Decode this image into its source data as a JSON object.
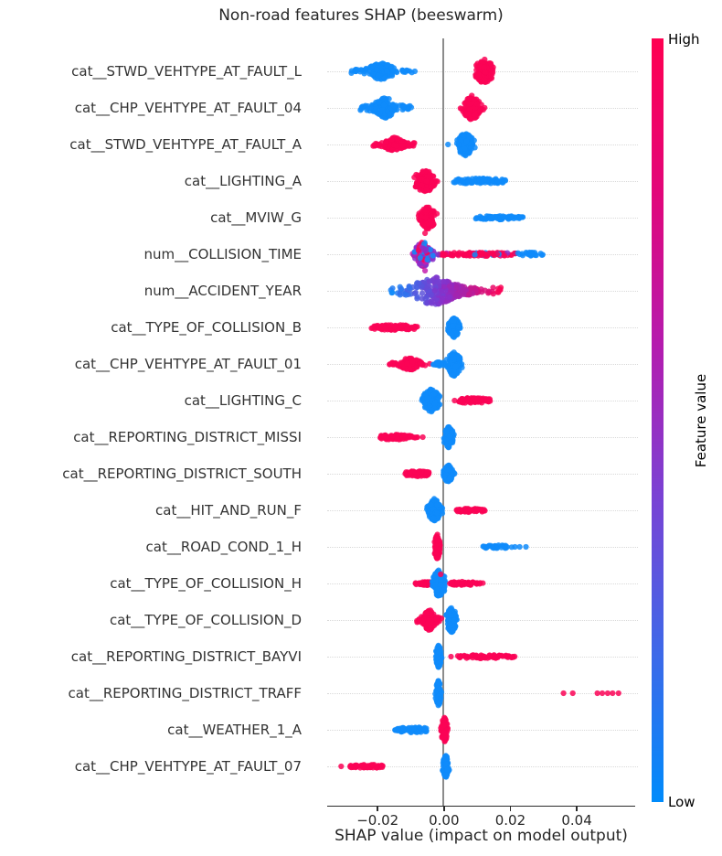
{
  "chart_data": {
    "type": "scatter",
    "subtype": "shap-beeswarm",
    "title": "Non-road features SHAP (beeswarm)",
    "xlabel": "SHAP value (impact on model output)",
    "xlim": [
      -0.0352,
      0.0576
    ],
    "xticks": [
      {
        "value": -0.02,
        "label": "−0.02"
      },
      {
        "value": 0.0,
        "label": "0.00"
      },
      {
        "value": 0.02,
        "label": "0.02"
      },
      {
        "value": 0.04,
        "label": "0.04"
      }
    ],
    "grid": "dotted-horizontal",
    "zero_line": true,
    "legend_position": "right-colorbar",
    "colorbar": {
      "label": "Feature value",
      "high_label": "High",
      "low_label": "Low",
      "high_color": "#ff0051",
      "low_color": "#008bfb",
      "gradient_stops": [
        "#ff0051",
        "#e20679",
        "#b51bae",
        "#7a42d4",
        "#3f68e8",
        "#008bfb"
      ]
    },
    "palette": {
      "red": "#fa0356",
      "blue": "#0f8bfa",
      "purple": "#8a2fc9",
      "magenta": "#c41fae"
    },
    "features": [
      {
        "name": "cat__STWD_VEHTYPE_AT_FAULT_L",
        "clusters": [
          {
            "shape": "hswarm",
            "x": [
              -0.0283,
              -0.0097
            ],
            "h": 9,
            "n": 150,
            "color": "blue"
          },
          {
            "shape": "dots",
            "xs": [
              -0.0088
            ],
            "color": "blue"
          },
          {
            "shape": "spindle",
            "x": [
              0.0082,
              0.016
            ],
            "h": 14,
            "n": 140,
            "color": "red"
          }
        ]
      },
      {
        "name": "cat__CHP_VEHTYPE_AT_FAULT_04",
        "clusters": [
          {
            "shape": "hswarm",
            "x": [
              -0.0255,
              -0.0097
            ],
            "h": 11,
            "n": 150,
            "color": "blue"
          },
          {
            "shape": "spindle",
            "x": [
              0.0046,
              0.0125
            ],
            "h": 14,
            "n": 130,
            "color": "red"
          }
        ]
      },
      {
        "name": "cat__STWD_VEHTYPE_AT_FAULT_A",
        "clusters": [
          {
            "shape": "hswarm",
            "x": [
              -0.0214,
              -0.0089
            ],
            "h": 8,
            "n": 130,
            "color": "red"
          },
          {
            "shape": "dots",
            "xs": [
              0.0012
            ],
            "color": "blue"
          },
          {
            "shape": "spindle",
            "x": [
              0.0028,
              0.01
            ],
            "h": 13,
            "n": 120,
            "color": "blue"
          }
        ]
      },
      {
        "name": "cat__LIGHTING_A",
        "clusters": [
          {
            "shape": "spindle",
            "x": [
              -0.0103,
              -0.0011
            ],
            "h": 13,
            "n": 140,
            "color": "red"
          },
          {
            "shape": "streak",
            "x": [
              0.0026,
              0.019
            ],
            "h": 3,
            "n": 95,
            "color": "blue"
          }
        ]
      },
      {
        "name": "cat__MVIW_G",
        "clusters": [
          {
            "shape": "spindle",
            "x": [
              -0.0084,
              -0.0014
            ],
            "h": 13,
            "n": 130,
            "color": "red"
          },
          {
            "shape": "streak",
            "x": [
              0.009,
              0.0238
            ],
            "h": 2,
            "n": 70,
            "color": "blue"
          }
        ]
      },
      {
        "name": "num__COLLISION_TIME",
        "clusters": [
          {
            "shape": "spindle",
            "x": [
              -0.0103,
              -0.0021
            ],
            "h": 14,
            "n": 130,
            "color": "mixed"
          },
          {
            "shape": "dots",
            "xs": [
              -0.0057
            ],
            "dy": -23,
            "color": "red"
          },
          {
            "shape": "dots",
            "xs": [
              -0.0057
            ],
            "dy": 18,
            "color": "magenta"
          },
          {
            "shape": "streak",
            "x": [
              -0.0019,
              0.0217
            ],
            "h": 2,
            "n": 115,
            "color": "red-mix"
          },
          {
            "shape": "streak",
            "x": [
              0.0217,
              0.0313
            ],
            "h": 2,
            "n": 22,
            "color": "blue"
          }
        ]
      },
      {
        "name": "num__ACCIDENT_YEAR",
        "clusters": [
          {
            "shape": "gradient",
            "x": [
              -0.0167,
              0.0172
            ],
            "h": 15,
            "n": 300,
            "color": "blue-purple-red"
          }
        ]
      },
      {
        "name": "cat__TYPE_OF_COLLISION_B",
        "clusters": [
          {
            "shape": "streak",
            "x": [
              -0.0222,
              -0.0077
            ],
            "h": 3,
            "n": 90,
            "color": "red"
          },
          {
            "shape": "spindle",
            "x": [
              0.0006,
              0.0055
            ],
            "h": 11,
            "n": 110,
            "color": "blue"
          }
        ]
      },
      {
        "name": "cat__CHP_VEHTYPE_AT_FAULT_01",
        "clusters": [
          {
            "shape": "hswarm",
            "x": [
              -0.0167,
              -0.0038
            ],
            "h": 7,
            "n": 120,
            "color": "red"
          },
          {
            "shape": "streak",
            "x": [
              -0.0034,
              0.0006
            ],
            "h": 2,
            "n": 25,
            "color": "blue"
          },
          {
            "shape": "spindle",
            "x": [
              0.0,
              0.0059
            ],
            "h": 14,
            "n": 130,
            "color": "blue"
          }
        ]
      },
      {
        "name": "cat__LIGHTING_C",
        "clusters": [
          {
            "shape": "spindle",
            "x": [
              -0.0076,
              -0.0001
            ],
            "h": 13,
            "n": 140,
            "color": "blue"
          },
          {
            "shape": "dots",
            "xs": [
              0.0032
            ],
            "color": "red"
          },
          {
            "shape": "streak",
            "x": [
              0.0041,
              0.0139
            ],
            "h": 3,
            "n": 80,
            "color": "red"
          }
        ]
      },
      {
        "name": "cat__REPORTING_DISTRICT_MISSI",
        "clusters": [
          {
            "shape": "streak",
            "x": [
              -0.0194,
              -0.0077
            ],
            "h": 3,
            "n": 85,
            "color": "red"
          },
          {
            "shape": "dots",
            "xs": [
              -0.0064
            ],
            "color": "red"
          },
          {
            "shape": "spindle",
            "x": [
              -0.0007,
              0.0035
            ],
            "h": 12,
            "n": 100,
            "color": "blue"
          }
        ]
      },
      {
        "name": "cat__REPORTING_DISTRICT_SOUTH",
        "clusters": [
          {
            "shape": "streak",
            "x": [
              -0.012,
              -0.0043
            ],
            "h": 3,
            "n": 70,
            "color": "red"
          },
          {
            "shape": "spindle",
            "x": [
              -0.0007,
              0.0032
            ],
            "h": 10,
            "n": 90,
            "color": "blue"
          }
        ]
      },
      {
        "name": "cat__HIT_AND_RUN_F",
        "clusters": [
          {
            "shape": "spindle",
            "x": [
              -0.0057,
              -0.0001
            ],
            "h": 13,
            "n": 130,
            "color": "blue"
          },
          {
            "shape": "streak",
            "x": [
              0.0034,
              0.0126
            ],
            "h": 2,
            "n": 60,
            "color": "red"
          }
        ]
      },
      {
        "name": "cat__ROAD_COND_1_H",
        "clusters": [
          {
            "shape": "spindle",
            "x": [
              -0.0034,
              -0.0006
            ],
            "h": 14,
            "n": 110,
            "color": "red"
          },
          {
            "shape": "streak",
            "x": [
              0.0114,
              0.0205
            ],
            "h": 2,
            "n": 35,
            "color": "blue"
          },
          {
            "shape": "dots",
            "xs": [
              0.0214,
              0.0228,
              0.0247
            ],
            "color": "blue"
          }
        ]
      },
      {
        "name": "cat__TYPE_OF_COLLISION_H",
        "clusters": [
          {
            "shape": "streak",
            "x": [
              -0.0086,
              -0.0029
            ],
            "h": 2,
            "n": 40,
            "color": "red"
          },
          {
            "shape": "spindle",
            "x": [
              -0.0043,
              0.0012
            ],
            "h": 15,
            "n": 130,
            "color": "blue"
          },
          {
            "shape": "dots",
            "xs": [
              -0.001
            ],
            "dy": -10,
            "color": "red"
          },
          {
            "shape": "streak",
            "x": [
              0.0012,
              0.0117
            ],
            "h": 2,
            "n": 55,
            "color": "red"
          }
        ]
      },
      {
        "name": "cat__TYPE_OF_COLLISION_D",
        "clusters": [
          {
            "shape": "hswarm",
            "x": [
              -0.0084,
              -0.0007
            ],
            "h": 12,
            "n": 130,
            "color": "red"
          },
          {
            "shape": "spindle",
            "x": [
              -0.0001,
              0.0046
            ],
            "h": 14,
            "n": 120,
            "color": "blue"
          }
        ]
      },
      {
        "name": "cat__REPORTING_DISTRICT_BAYVI",
        "clusters": [
          {
            "shape": "spindle",
            "x": [
              -0.0029,
              -0.0004
            ],
            "h": 13,
            "n": 90,
            "color": "blue"
          },
          {
            "shape": "dots",
            "xs": [
              0.0021
            ],
            "color": "red"
          },
          {
            "shape": "streak",
            "x": [
              0.004,
              0.0214
            ],
            "h": 2,
            "n": 75,
            "color": "red"
          }
        ]
      },
      {
        "name": "cat__REPORTING_DISTRICT_TRAFF",
        "clusters": [
          {
            "shape": "spindle",
            "x": [
              -0.0029,
              -0.0004
            ],
            "h": 14,
            "n": 90,
            "color": "blue"
          },
          {
            "shape": "dots",
            "xs": [
              0.036,
              0.0388,
              0.0462,
              0.0477,
              0.0493,
              0.0508,
              0.0526
            ],
            "color": "red"
          }
        ]
      },
      {
        "name": "cat__WEATHER_1_A",
        "clusters": [
          {
            "shape": "streak",
            "x": [
              -0.0148,
              -0.0048
            ],
            "h": 3,
            "n": 70,
            "color": "blue"
          },
          {
            "shape": "spindle",
            "x": [
              -0.0013,
              0.0015
            ],
            "h": 14,
            "n": 100,
            "color": "red"
          }
        ]
      },
      {
        "name": "cat__CHP_VEHTYPE_AT_FAULT_07",
        "clusters": [
          {
            "shape": "dots",
            "xs": [
              -0.031
            ],
            "color": "red"
          },
          {
            "shape": "streak",
            "x": [
              -0.0283,
              -0.0182
            ],
            "h": 2,
            "n": 60,
            "color": "red"
          },
          {
            "shape": "spindle",
            "x": [
              -0.0007,
              0.0018
            ],
            "h": 13,
            "n": 100,
            "color": "blue"
          }
        ]
      }
    ]
  }
}
